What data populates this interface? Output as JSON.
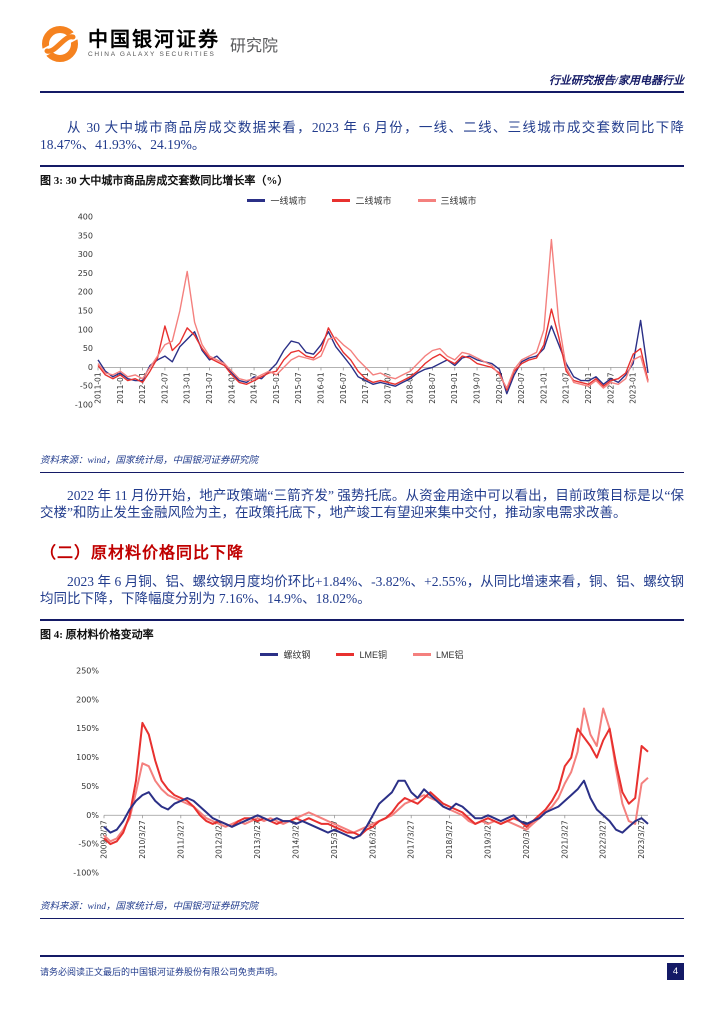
{
  "header": {
    "brand_cn": "中国银河证券",
    "brand_en": "CHINA GALAXY SECURITIES",
    "brand_suffix": "研究院",
    "report_type": "行业研究报告/家用电器行业"
  },
  "paragraphs": {
    "p1": "从 30 大中城市商品房成交数据来看，2023 年 6 月份，一线、二线、三线城市成交套数同比下降 18.47%、41.93%、24.19%。",
    "p2": "2022 年 11 月份开始，地产政策端“三箭齐发” 强势托底。从资金用途中可以看出，目前政策目标是以“保交楼”和防止发生金融风险为主，在政策托底下，地产竣工有望迎来集中交付，推动家电需求改善。",
    "section2_title": "（二）原材料价格同比下降",
    "p3": "2023 年 6 月铜、铝、螺纹钢月度均价环比+1.84%、-3.82%、+2.55%，从同比增速来看，铜、铝、螺纹钢均同比下降，下降幅度分别为 7.16%、14.9%、18.02%。"
  },
  "figure3": {
    "label": "图 3: 30 大中城市商品房成交套数同比增长率（%）",
    "source": "资料来源：wind，国家统计局，中国银河证券研究院"
  },
  "figure4": {
    "label": "图 4: 原材料价格变动率",
    "source": "资料来源：wind，国家统计局，中国银河证券研究院"
  },
  "footer": {
    "disclaimer": "请务必阅读正文最后的中国银河证券股份有限公司免责声明。",
    "page_number": "4"
  },
  "chart_data": [
    {
      "type": "line",
      "title": "30大中城市商品房成交套数同比增长率（%）",
      "xlabel": "",
      "ylabel": "",
      "grid": false,
      "legend_position": "top",
      "legend": [
        "一线城市",
        "二线城市",
        "三线城市"
      ],
      "colors": [
        "#2b3087",
        "#e8312f",
        "#f4807e"
      ],
      "ylim": [
        -100,
        400
      ],
      "ystep": 50,
      "ysuffix": "",
      "x_tick_labels": [
        "2011-01",
        "2011-07",
        "2012-01",
        "2012-07",
        "2013-01",
        "2013-07",
        "2014-01",
        "2014-07",
        "2015-01",
        "2015-07",
        "2016-01",
        "2016-07",
        "2017-01",
        "2017-07",
        "2018-01",
        "2018-07",
        "2019-01",
        "2019-07",
        "2020-01",
        "2020-07",
        "2021-01",
        "2021-07",
        "2022-01",
        "2022-07",
        "2023-01"
      ],
      "tick_every": 3,
      "x_note": "bimonthly samples 2011-01 to 2023-05, YoY %",
      "series": [
        {
          "name": "一线城市",
          "values": [
            20,
            -10,
            -25,
            -15,
            -30,
            -35,
            -35,
            5,
            20,
            30,
            15,
            55,
            75,
            95,
            45,
            20,
            30,
            10,
            -15,
            -35,
            -40,
            -25,
            -30,
            -10,
            10,
            45,
            70,
            65,
            40,
            35,
            60,
            95,
            55,
            30,
            5,
            -25,
            -35,
            -45,
            -40,
            -45,
            -50,
            -40,
            -30,
            -15,
            -5,
            0,
            10,
            20,
            5,
            25,
            30,
            20,
            15,
            10,
            -5,
            -70,
            -20,
            15,
            25,
            30,
            50,
            110,
            60,
            10,
            -25,
            -35,
            -35,
            -25,
            -45,
            -30,
            -40,
            -20,
            10,
            125,
            -15
          ]
        },
        {
          "name": "二线城市",
          "values": [
            5,
            -20,
            -30,
            -20,
            -35,
            -30,
            -40,
            -10,
            25,
            110,
            45,
            65,
            105,
            85,
            50,
            25,
            15,
            5,
            -20,
            -40,
            -45,
            -35,
            -25,
            -15,
            -10,
            20,
            40,
            45,
            30,
            25,
            45,
            105,
            70,
            40,
            20,
            -10,
            -30,
            -40,
            -35,
            -40,
            -45,
            -35,
            -25,
            -10,
            10,
            25,
            35,
            20,
            10,
            30,
            25,
            10,
            5,
            0,
            -15,
            -60,
            -10,
            10,
            20,
            25,
            60,
            155,
            80,
            -10,
            -35,
            -40,
            -45,
            -30,
            -50,
            -35,
            -30,
            -15,
            35,
            50,
            -35
          ]
        },
        {
          "name": "三线城市",
          "values": [
            10,
            -15,
            -20,
            -10,
            -25,
            -20,
            -30,
            0,
            30,
            60,
            70,
            150,
            255,
            120,
            60,
            30,
            20,
            10,
            -10,
            -30,
            -35,
            -30,
            -20,
            -10,
            -20,
            0,
            20,
            30,
            25,
            20,
            30,
            75,
            80,
            60,
            45,
            20,
            0,
            -20,
            -15,
            -25,
            -30,
            -20,
            -10,
            10,
            30,
            45,
            50,
            30,
            20,
            40,
            35,
            25,
            15,
            5,
            -20,
            -55,
            -5,
            20,
            30,
            40,
            100,
            340,
            120,
            0,
            -40,
            -45,
            -50,
            -35,
            -55,
            -40,
            -45,
            -30,
            20,
            30,
            -40
          ]
        }
      ]
    },
    {
      "type": "line",
      "title": "原材料价格变动率",
      "xlabel": "",
      "ylabel": "",
      "grid": false,
      "legend_position": "top",
      "legend": [
        "螺纹钢",
        "LME铜",
        "LME铝"
      ],
      "colors": [
        "#2b3087",
        "#e8312f",
        "#f4807e"
      ],
      "ylim": [
        -100,
        250
      ],
      "ystep": 50,
      "ysuffix": "%",
      "x_tick_labels": [
        "2009/3/27",
        "2010/3/27",
        "2011/3/27",
        "2012/3/27",
        "2013/3/27",
        "2014/3/27",
        "2015/3/27",
        "2016/3/27",
        "2017/3/27",
        "2018/3/27",
        "2019/3/27",
        "2020/3/27",
        "2021/3/27",
        "2022/3/27",
        "2023/3/27"
      ],
      "tick_every": 6,
      "x_note": "bimonthly samples 2009-03 to 2023-05, YoY % change",
      "series": [
        {
          "name": "螺纹钢",
          "values": [
            -20,
            -30,
            -25,
            -10,
            10,
            25,
            35,
            40,
            25,
            15,
            10,
            20,
            25,
            30,
            25,
            15,
            5,
            -5,
            -10,
            -15,
            -20,
            -15,
            -10,
            -5,
            0,
            -5,
            -10,
            -5,
            -10,
            -10,
            -15,
            -10,
            -15,
            -20,
            -25,
            -30,
            -25,
            -30,
            -35,
            -40,
            -35,
            -20,
            0,
            20,
            30,
            40,
            60,
            60,
            40,
            30,
            45,
            35,
            25,
            15,
            10,
            20,
            15,
            5,
            -5,
            -5,
            0,
            -5,
            -10,
            -5,
            0,
            -10,
            -15,
            -10,
            -5,
            5,
            10,
            15,
            25,
            35,
            45,
            60,
            30,
            10,
            0,
            -10,
            -25,
            -30,
            -20,
            -10,
            -5,
            -15
          ]
        },
        {
          "name": "LME铜",
          "values": [
            -40,
            -50,
            -45,
            -30,
            0,
            60,
            160,
            140,
            95,
            60,
            45,
            35,
            30,
            25,
            15,
            0,
            -10,
            -15,
            -10,
            -15,
            -20,
            -10,
            -5,
            -5,
            -10,
            -5,
            -10,
            -15,
            -10,
            -10,
            -5,
            -10,
            -5,
            -10,
            -15,
            -15,
            -20,
            -25,
            -30,
            -30,
            -35,
            -25,
            -20,
            -10,
            -5,
            5,
            20,
            30,
            25,
            20,
            30,
            40,
            30,
            20,
            15,
            10,
            5,
            -5,
            -15,
            -10,
            -5,
            -10,
            -15,
            -10,
            -5,
            -10,
            -20,
            -10,
            0,
            10,
            25,
            45,
            85,
            100,
            150,
            135,
            120,
            100,
            130,
            150,
            90,
            40,
            20,
            30,
            120,
            110
          ]
        },
        {
          "name": "LME铝",
          "values": [
            -35,
            -45,
            -40,
            -25,
            -5,
            40,
            90,
            85,
            60,
            45,
            35,
            30,
            25,
            20,
            15,
            5,
            -5,
            -10,
            -15,
            -20,
            -15,
            -10,
            -15,
            -10,
            -5,
            -10,
            -5,
            -10,
            -15,
            -10,
            -5,
            0,
            5,
            0,
            -5,
            -10,
            -15,
            -20,
            -25,
            -30,
            -25,
            -20,
            -15,
            -10,
            -5,
            0,
            10,
            20,
            25,
            30,
            35,
            30,
            25,
            15,
            10,
            5,
            0,
            -10,
            -15,
            -10,
            -15,
            -10,
            -15,
            -10,
            -15,
            -20,
            -25,
            -15,
            -5,
            5,
            15,
            30,
            55,
            75,
            110,
            185,
            140,
            120,
            185,
            150,
            80,
            20,
            -10,
            -15,
            55,
            65
          ]
        }
      ]
    }
  ]
}
